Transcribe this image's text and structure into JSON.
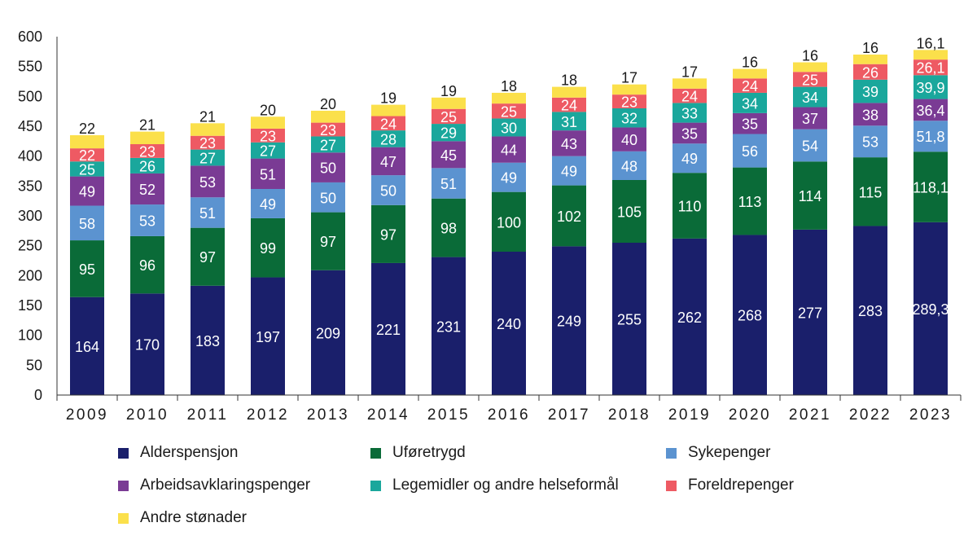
{
  "chart_data": {
    "type": "bar",
    "stacked": true,
    "title": "",
    "xlabel": "",
    "ylabel": "",
    "ylim": [
      0,
      600
    ],
    "yticks": [
      0,
      50,
      100,
      150,
      200,
      250,
      300,
      350,
      400,
      450,
      500,
      550,
      600
    ],
    "grid": false,
    "legend_position": "bottom",
    "categories": [
      "2009",
      "2010",
      "2011",
      "2012",
      "2013",
      "2014",
      "2015",
      "2016",
      "2017",
      "2018",
      "2019",
      "2020",
      "2021",
      "2022",
      "2023"
    ],
    "series": [
      {
        "name": "Alderspensjon",
        "color": "#1a1f6b",
        "label_color": "#ffffff",
        "values": [
          164,
          170,
          183,
          197,
          209,
          221,
          231,
          240,
          249,
          255,
          262,
          268,
          277,
          283,
          289.3
        ],
        "labels": [
          "164",
          "170",
          "183",
          "197",
          "209",
          "221",
          "231",
          "240",
          "249",
          "255",
          "262",
          "268",
          "277",
          "283",
          "289,3"
        ]
      },
      {
        "name": "Uføretrygd",
        "color": "#0a6b38",
        "label_color": "#ffffff",
        "values": [
          95,
          96,
          97,
          99,
          97,
          97,
          98,
          100,
          102,
          105,
          110,
          113,
          114,
          115,
          118.1
        ],
        "labels": [
          "95",
          "96",
          "97",
          "99",
          "97",
          "97",
          "98",
          "100",
          "102",
          "105",
          "110",
          "113",
          "114",
          "115",
          "118,1"
        ]
      },
      {
        "name": "Sykepenger",
        "color": "#5b93d0",
        "label_color": "#ffffff",
        "values": [
          58,
          53,
          51,
          49,
          50,
          50,
          51,
          49,
          49,
          48,
          49,
          56,
          54,
          53,
          51.8
        ],
        "labels": [
          "58",
          "53",
          "51",
          "49",
          "50",
          "50",
          "51",
          "49",
          "49",
          "48",
          "49",
          "56",
          "54",
          "53",
          "51,8"
        ]
      },
      {
        "name": "Arbeidsavklaringspenger",
        "color": "#7a3b94",
        "label_color": "#ffffff",
        "values": [
          49,
          52,
          53,
          51,
          50,
          47,
          45,
          44,
          43,
          40,
          35,
          35,
          37,
          38,
          36.4
        ],
        "labels": [
          "49",
          "52",
          "53",
          "51",
          "50",
          "47",
          "45",
          "44",
          "43",
          "40",
          "35",
          "35",
          "37",
          "38",
          "36,4"
        ]
      },
      {
        "name": "Legemidler og andre helseformål",
        "color": "#1aa79c",
        "label_color": "#ffffff",
        "values": [
          25,
          26,
          27,
          27,
          27,
          28,
          29,
          30,
          31,
          32,
          33,
          34,
          34,
          39,
          39.9
        ],
        "labels": [
          "25",
          "26",
          "27",
          "27",
          "27",
          "28",
          "29",
          "30",
          "31",
          "32",
          "33",
          "34",
          "34",
          "39",
          "39,9"
        ]
      },
      {
        "name": "Foreldrepenger",
        "color": "#ee5a63",
        "label_color": "#ffffff",
        "values": [
          22,
          23,
          23,
          23,
          23,
          24,
          25,
          25,
          24,
          23,
          24,
          24,
          25,
          26,
          26.1
        ],
        "labels": [
          "22",
          "23",
          "23",
          "23",
          "23",
          "24",
          "25",
          "25",
          "24",
          "23",
          "24",
          "24",
          "25",
          "26",
          "26,1"
        ]
      },
      {
        "name": "Andre stønader",
        "color": "#fbe04b",
        "label_color": "#1a1a1a",
        "values": [
          22,
          21,
          21,
          20,
          20,
          19,
          19,
          18,
          18,
          17,
          17,
          16,
          16,
          16,
          16.1
        ],
        "labels": [
          "22",
          "21",
          "21",
          "20",
          "20",
          "19",
          "19",
          "18",
          "18",
          "17",
          "17",
          "16",
          "16",
          "16",
          "16,1"
        ]
      }
    ]
  }
}
